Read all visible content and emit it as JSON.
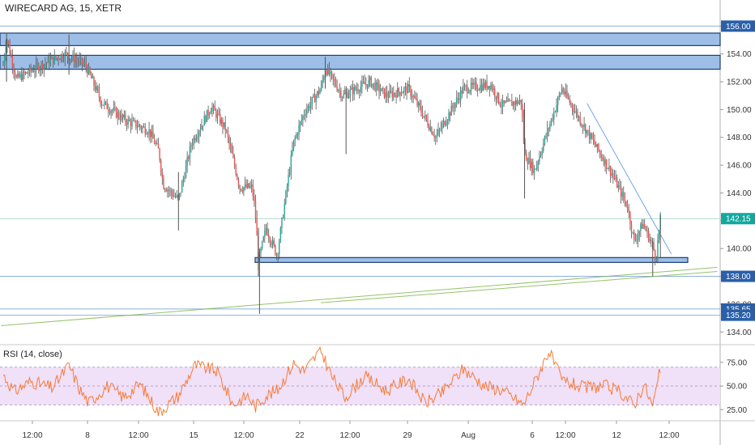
{
  "header": {
    "symbol_title": "WIRECARD AG, 15, XETR"
  },
  "rsi_panel": {
    "title": "RSI (14, close)"
  },
  "colors": {
    "up": "#26a69a",
    "down": "#ef5350",
    "candle": "#555555",
    "zone_fill": "#9dbee6",
    "zone_stroke": "#1f3e73",
    "hline": "#5b8fd1",
    "trend_green": "#7cb342",
    "trend_blue": "#4a90e2",
    "rsi_line": "#f57c38",
    "rsi_band": "#f0e0f8",
    "badge": "#2a5fa9",
    "current_badge": "#13a89e"
  },
  "chart_data": [
    {
      "type": "candlestick",
      "title": "WIRECARD AG, 15, XETR",
      "ylim": [
        133.2,
        156.6
      ],
      "y_ticks": [
        134,
        136,
        138,
        140,
        142,
        144,
        146,
        148,
        150,
        152,
        154,
        156
      ],
      "y_tick_labels": [
        "134.00",
        "136.00",
        "138.00",
        "140.00",
        "142.00",
        "144.00",
        "146.00",
        "148.00",
        "150.00",
        "152.00",
        "154.00",
        "156.00"
      ],
      "x_ticks": [
        "12:00",
        "8",
        "12:00",
        "15",
        "12:00",
        "22",
        "12:00",
        "29",
        "Aug",
        "6",
        "12:00",
        "12",
        "12:00"
      ],
      "price_badges": [
        {
          "label": "156.00",
          "value": 156.0,
          "kind": "line"
        },
        {
          "label": "142.15",
          "value": 142.15,
          "kind": "current"
        },
        {
          "label": "138.00",
          "value": 138.0,
          "kind": "line"
        },
        {
          "label": "135.65",
          "value": 135.65,
          "kind": "line"
        },
        {
          "label": "135.20",
          "value": 135.2,
          "kind": "line"
        }
      ],
      "zones": [
        {
          "from": 154.6,
          "to": 155.5
        },
        {
          "from": 152.9,
          "to": 153.9
        },
        {
          "from": 139.0,
          "to": 139.35
        }
      ],
      "path": [
        {
          "x": 0.0,
          "y": 153.2
        },
        {
          "x": 0.3,
          "y": 155.2
        },
        {
          "x": 1.2,
          "y": 152.2
        },
        {
          "x": 3.0,
          "y": 153.0
        },
        {
          "x": 5.6,
          "y": 154.0
        },
        {
          "x": 7.5,
          "y": 153.2
        },
        {
          "x": 9.0,
          "y": 150.5
        },
        {
          "x": 11.2,
          "y": 149.2
        },
        {
          "x": 13.3,
          "y": 148.5
        },
        {
          "x": 14.2,
          "y": 147.0
        },
        {
          "x": 14.6,
          "y": 144.6
        },
        {
          "x": 16.0,
          "y": 143.5
        },
        {
          "x": 17.2,
          "y": 147.6
        },
        {
          "x": 19.0,
          "y": 150.2
        },
        {
          "x": 20.3,
          "y": 148.6
        },
        {
          "x": 21.6,
          "y": 144.4
        },
        {
          "x": 22.7,
          "y": 144.4
        },
        {
          "x": 23.0,
          "y": 142.8
        },
        {
          "x": 23.3,
          "y": 139.0
        },
        {
          "x": 24.0,
          "y": 141.5
        },
        {
          "x": 25.0,
          "y": 139.5
        },
        {
          "x": 26.5,
          "y": 147.6
        },
        {
          "x": 27.5,
          "y": 149.8
        },
        {
          "x": 29.0,
          "y": 151.5
        },
        {
          "x": 29.4,
          "y": 153.0
        },
        {
          "x": 31.0,
          "y": 151.0
        },
        {
          "x": 33.5,
          "y": 152.0
        },
        {
          "x": 35.0,
          "y": 151.0
        },
        {
          "x": 37.0,
          "y": 151.5
        },
        {
          "x": 39.5,
          "y": 148.0
        },
        {
          "x": 42.0,
          "y": 151.5
        },
        {
          "x": 44.5,
          "y": 151.8
        },
        {
          "x": 45.5,
          "y": 150.3
        },
        {
          "x": 47.3,
          "y": 150.6
        },
        {
          "x": 47.6,
          "y": 146.8
        },
        {
          "x": 48.5,
          "y": 145.6
        },
        {
          "x": 49.5,
          "y": 148.0
        },
        {
          "x": 51.0,
          "y": 151.5
        },
        {
          "x": 52.5,
          "y": 149.5
        },
        {
          "x": 54.0,
          "y": 147.5
        },
        {
          "x": 55.5,
          "y": 145.5
        },
        {
          "x": 57.0,
          "y": 143.0
        },
        {
          "x": 57.6,
          "y": 140.5
        },
        {
          "x": 58.4,
          "y": 141.8
        },
        {
          "x": 59.3,
          "y": 140.2
        },
        {
          "x": 59.6,
          "y": 139.3
        },
        {
          "x": 60.0,
          "y": 142.15
        }
      ],
      "wicks": [
        {
          "x": 0.3,
          "high": 155.5,
          "low": 152.0
        },
        {
          "x": 6.0,
          "high": 155.4,
          "low": 152.5
        },
        {
          "x": 16.0,
          "high": 145.5,
          "low": 141.3
        },
        {
          "x": 23.3,
          "high": 141.5,
          "low": 138.0
        },
        {
          "x": 23.4,
          "high": 140.0,
          "low": 135.3
        },
        {
          "x": 29.4,
          "high": 153.8,
          "low": 151.5
        },
        {
          "x": 31.3,
          "high": 151.5,
          "low": 146.8
        },
        {
          "x": 47.6,
          "high": 150.5,
          "low": 143.6
        },
        {
          "x": 59.3,
          "high": 140.5,
          "low": 138.0
        },
        {
          "x": 60.0,
          "high": 142.4,
          "low": 139.3
        }
      ],
      "trendlines": [
        {
          "color": "trend_green",
          "from": {
            "x": -0.2,
            "y": 134.45
          },
          "to": {
            "x": 65.2,
            "y": 138.65
          }
        },
        {
          "color": "trend_green",
          "from": {
            "x": 29.0,
            "y": 136.1
          },
          "to": {
            "x": 65.2,
            "y": 138.35
          }
        },
        {
          "color": "trend_blue",
          "from": {
            "x": 53.3,
            "y": 150.45
          },
          "to": {
            "x": 61.0,
            "y": 139.6
          }
        }
      ]
    },
    {
      "type": "line",
      "title": "RSI (14, close)",
      "ylim": [
        15,
        92
      ],
      "y_ticks": [
        25,
        50,
        75
      ],
      "y_tick_labels": [
        "25.00",
        "50.00",
        "75.00"
      ],
      "band": [
        30,
        70
      ],
      "series": [
        {
          "values": [
            {
              "x": 0.0,
              "y": 62
            },
            {
              "x": 1.0,
              "y": 44
            },
            {
              "x": 2.5,
              "y": 55
            },
            {
              "x": 4.5,
              "y": 48
            },
            {
              "x": 6.0,
              "y": 72
            },
            {
              "x": 7.0,
              "y": 46
            },
            {
              "x": 7.8,
              "y": 32
            },
            {
              "x": 9.5,
              "y": 50
            },
            {
              "x": 11.0,
              "y": 38
            },
            {
              "x": 12.5,
              "y": 52
            },
            {
              "x": 14.2,
              "y": 22
            },
            {
              "x": 16.0,
              "y": 40
            },
            {
              "x": 17.5,
              "y": 72
            },
            {
              "x": 19.5,
              "y": 66
            },
            {
              "x": 21.0,
              "y": 30
            },
            {
              "x": 22.3,
              "y": 40
            },
            {
              "x": 23.0,
              "y": 28
            },
            {
              "x": 24.0,
              "y": 40
            },
            {
              "x": 25.0,
              "y": 45
            },
            {
              "x": 26.5,
              "y": 74
            },
            {
              "x": 27.5,
              "y": 66
            },
            {
              "x": 29.0,
              "y": 88
            },
            {
              "x": 30.0,
              "y": 60
            },
            {
              "x": 31.2,
              "y": 38
            },
            {
              "x": 33.0,
              "y": 60
            },
            {
              "x": 35.0,
              "y": 45
            },
            {
              "x": 37.0,
              "y": 58
            },
            {
              "x": 38.5,
              "y": 32
            },
            {
              "x": 40.0,
              "y": 42
            },
            {
              "x": 42.0,
              "y": 68
            },
            {
              "x": 44.0,
              "y": 50
            },
            {
              "x": 45.5,
              "y": 46
            },
            {
              "x": 47.5,
              "y": 30
            },
            {
              "x": 49.0,
              "y": 66
            },
            {
              "x": 49.8,
              "y": 87
            },
            {
              "x": 51.0,
              "y": 56
            },
            {
              "x": 53.0,
              "y": 48
            },
            {
              "x": 55.0,
              "y": 50
            },
            {
              "x": 56.5,
              "y": 42
            },
            {
              "x": 57.6,
              "y": 30
            },
            {
              "x": 58.5,
              "y": 52
            },
            {
              "x": 59.3,
              "y": 28
            },
            {
              "x": 60.0,
              "y": 68
            }
          ]
        }
      ]
    }
  ]
}
